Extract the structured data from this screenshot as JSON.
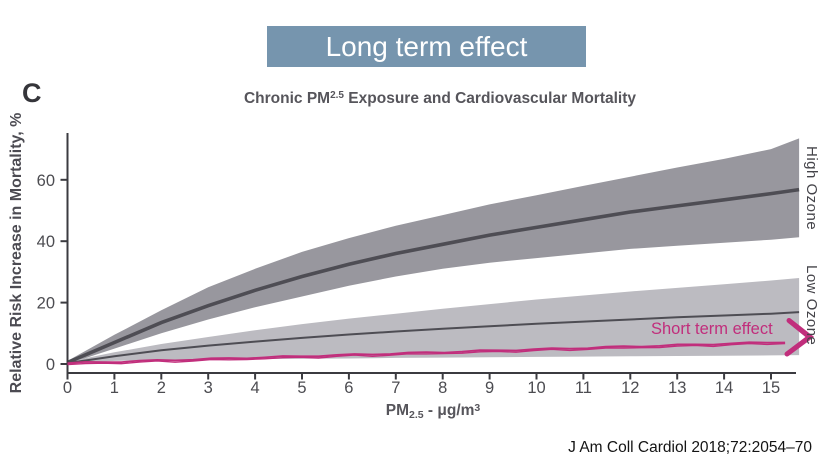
{
  "banner": {
    "label": "Long term effect",
    "bg_color": "#7695ae",
    "text_color": "#ffffff"
  },
  "figure": {
    "panel_label": "C"
  },
  "citation": "J Am Coll Cardiol 2018;72:2054–70",
  "chart_data": {
    "type": "line",
    "title_parts": {
      "pre": "Chronic PM",
      "sup": "2.5",
      "post": " Exposure and Cardiovascular Mortality"
    },
    "xlabel_parts": {
      "base": "PM",
      "sub": "2.5",
      "mid": " - μg/m",
      "sup": "3"
    },
    "ylabel": "Relative Risk Increase in Mortality, %",
    "xlim": [
      0,
      15.6
    ],
    "ylim": [
      0,
      75
    ],
    "grid": false,
    "xticks": [
      0,
      1,
      2,
      3,
      4,
      5,
      6,
      7,
      8,
      9,
      10,
      11,
      12,
      13,
      14,
      15
    ],
    "yticks": [
      0,
      20,
      40,
      60
    ],
    "x": [
      0,
      1,
      2,
      3,
      4,
      5,
      6,
      7,
      8,
      9,
      10,
      11,
      12,
      13,
      14,
      15,
      15.6
    ],
    "series": [
      {
        "name": "High Ozone",
        "label": "High Ozone",
        "mean": [
          0.5,
          7,
          13.5,
          19,
          24,
          28.5,
          32.5,
          36,
          39,
          42,
          44.5,
          47,
          49.5,
          51.5,
          53.5,
          55.5,
          56.8
        ],
        "upper": [
          1,
          9.5,
          17.5,
          25,
          31,
          36.5,
          41,
          45,
          48.5,
          52,
          55,
          58,
          61,
          64,
          66.8,
          70,
          73.5
        ],
        "lower": [
          0,
          5,
          10,
          14.5,
          18.5,
          22,
          25.5,
          28.5,
          31,
          33,
          34.5,
          36,
          37.5,
          38.5,
          39.5,
          40.5,
          41.3
        ],
        "line_color": "#4e4d54",
        "band_color": "#98979e"
      },
      {
        "name": "Low Ozone",
        "label": "Low Ozone",
        "mean": [
          0.3,
          2.5,
          4.5,
          6,
          7.3,
          8.5,
          9.6,
          10.6,
          11.5,
          12.3,
          13.1,
          13.8,
          14.5,
          15.2,
          15.8,
          16.4,
          16.9
        ],
        "upper": [
          0.7,
          3.8,
          6.5,
          8.8,
          11,
          13,
          14.8,
          16.4,
          18,
          19.5,
          21,
          22.3,
          23.6,
          24.8,
          26,
          27.2,
          28
        ],
        "lower": [
          0,
          1,
          1.3,
          1.5,
          1.6,
          1.7,
          1.8,
          2,
          2.1,
          2.2,
          2.3,
          2.4,
          2.5,
          2.6,
          2.7,
          2.8,
          2.9
        ],
        "line_color": "#4e4d54",
        "band_color": "#bcbbc1"
      }
    ],
    "annotation": {
      "label": "Short term effect",
      "color": "#c12e7c",
      "x": [
        0,
        15.3
      ],
      "y": [
        0.3,
        7.2
      ]
    },
    "axis_color": "#3b3b40"
  }
}
